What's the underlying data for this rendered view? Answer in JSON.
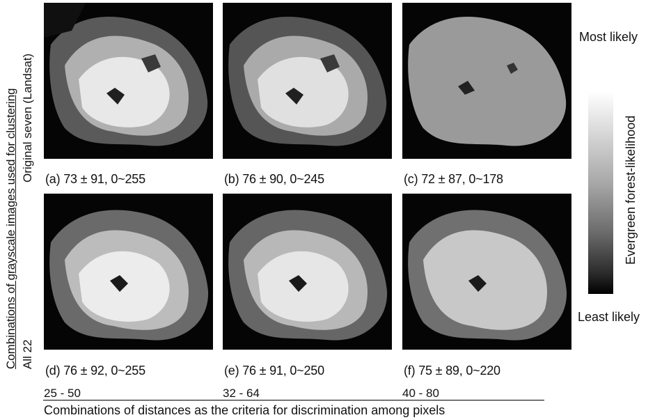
{
  "figure": {
    "row_axis_label": "Combinations of grayscale images used for clustering",
    "rows": [
      {
        "label": "Original seven (Landsat)"
      },
      {
        "label": "All 22"
      }
    ],
    "column_axis_label": "Combinations of distances as the criteria for discrimination among pixels",
    "columns": [
      {
        "label": "25 - 50"
      },
      {
        "label": "32 - 64"
      },
      {
        "label": "40 - 80"
      }
    ],
    "panels": [
      {
        "caption": "(a) 73 ± 91, 0~255"
      },
      {
        "caption": "(b) 76 ± 90, 0~245"
      },
      {
        "caption": "(c) 72 ± 87, 0~178"
      },
      {
        "caption": "(d) 76 ± 92, 0~255"
      },
      {
        "caption": "(e) 76 ± 91, 0~250"
      },
      {
        "caption": "(f) 75 ± 89, 0~220"
      }
    ],
    "legend": {
      "title": "Evergreen forest-likelihood",
      "top_label": "Most likely",
      "bottom_label": "Least likely",
      "gradient_colors": [
        "#ffffff",
        "#000000"
      ]
    }
  }
}
